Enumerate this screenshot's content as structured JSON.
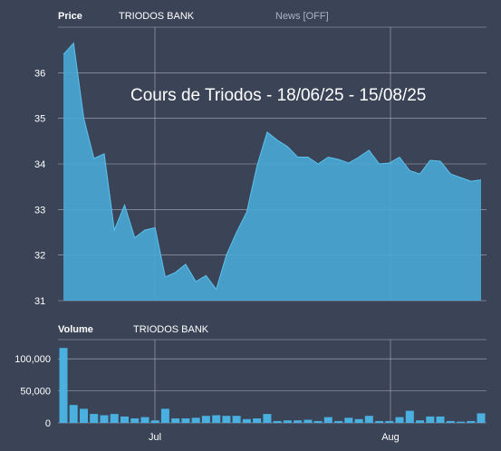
{
  "price_panel": {
    "title": "Price",
    "instrument": "TRIODOS BANK",
    "news_toggle": "News [OFF]",
    "overlay_text": "Cours de Triodos - 18/06/25 - 15/08/25"
  },
  "volume_panel": {
    "title": "Volume",
    "instrument": "TRIODOS BANK"
  },
  "colors": {
    "background": "#3b4457",
    "area_fill": "#49a9d6",
    "area_line": "#5cc2ee",
    "bar_fill": "#49b0e0",
    "grid": "#c4cad4"
  },
  "chart_data": [
    {
      "type": "area",
      "panel": "price",
      "x_ticks": [
        "Jul",
        "Aug"
      ],
      "ylim": [
        31,
        37
      ],
      "y_ticks": [
        31,
        32,
        33,
        34,
        35,
        36
      ],
      "grid": true,
      "series": [
        {
          "values": [
            36.4,
            36.65,
            35.0,
            34.12,
            34.22,
            32.55,
            33.1,
            32.38,
            32.55,
            32.6,
            31.52,
            31.62,
            31.8,
            31.42,
            31.55,
            31.25,
            32.0,
            32.5,
            32.95,
            33.95,
            34.7,
            34.52,
            34.38,
            34.15,
            34.15,
            34.0,
            34.15,
            34.1,
            34.02,
            34.15,
            34.3,
            34.0,
            34.02,
            34.15,
            33.85,
            33.78,
            34.08,
            34.06,
            33.78,
            33.7,
            33.62,
            33.65
          ]
        }
      ]
    },
    {
      "type": "bar",
      "panel": "volume",
      "x_ticks": [
        "Jul",
        "Aug"
      ],
      "ylim": [
        0,
        130000
      ],
      "y_ticks": [
        {
          "value": 0,
          "label": "0"
        },
        {
          "value": 50000,
          "label": "50,000"
        },
        {
          "value": 100000,
          "label": "100,000"
        }
      ],
      "grid": true,
      "series": [
        {
          "values": [
            117000,
            28000,
            22000,
            14000,
            12000,
            14000,
            10000,
            7000,
            9000,
            4000,
            22000,
            7000,
            7000,
            8000,
            11000,
            12000,
            11000,
            11000,
            6000,
            7000,
            14000,
            3000,
            4000,
            4000,
            5000,
            3000,
            9000,
            3000,
            8000,
            6000,
            11000,
            3000,
            3000,
            9000,
            19000,
            4000,
            10000,
            10000,
            3000,
            2000,
            3000,
            15000
          ]
        }
      ]
    }
  ]
}
